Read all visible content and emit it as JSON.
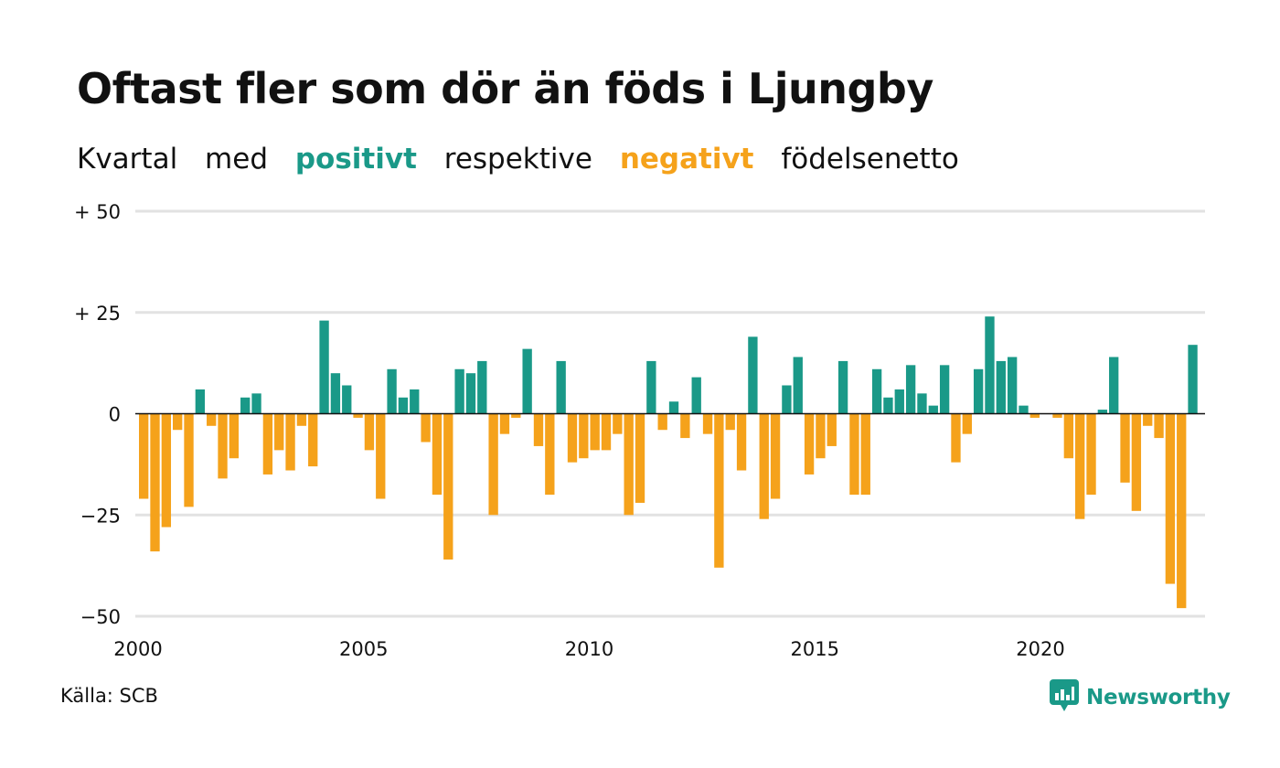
{
  "title": "Oftast fler som dör än föds i Ljungby",
  "subtitle": {
    "part1": "Kvartal",
    "part2": "med",
    "positive_word": "positivt",
    "part3": "respektive",
    "negative_word": "negativt",
    "part4": "födelsenetto"
  },
  "source": "Källa: SCB",
  "brand": {
    "name": "Newsworthy",
    "icon": "newsworthy-logo-icon"
  },
  "colors": {
    "positive": "#1a9988",
    "negative": "#f5a21b",
    "grid": "#e2e2e2",
    "zero_line": "#111111"
  },
  "chart_data": {
    "type": "bar",
    "title": "Oftast fler som dör än föds i Ljungby",
    "subtitle": "Kvartal med positivt respektive negativt födelsenetto",
    "x_start": 2000,
    "x_step": 0.25,
    "xlim": [
      2000,
      2023.75
    ],
    "ylim": [
      -50,
      50
    ],
    "y_ticks": [
      {
        "value": 50,
        "label": "+ 50"
      },
      {
        "value": 25,
        "label": "+ 25"
      },
      {
        "value": 0,
        "label": "0"
      },
      {
        "value": -25,
        "label": "−25"
      },
      {
        "value": -50,
        "label": "−50"
      }
    ],
    "x_ticks": [
      {
        "value": 2000,
        "label": "2000"
      },
      {
        "value": 2005,
        "label": "2005"
      },
      {
        "value": 2010,
        "label": "2010"
      },
      {
        "value": 2015,
        "label": "2015"
      },
      {
        "value": 2020,
        "label": "2020"
      }
    ],
    "grid": true,
    "values": [
      -21,
      -34,
      -28,
      -4,
      -23,
      6,
      -3,
      -16,
      -11,
      4,
      5,
      -15,
      -9,
      -14,
      -3,
      -13,
      23,
      10,
      7,
      -1,
      -9,
      -21,
      11,
      4,
      6,
      -7,
      -20,
      -36,
      11,
      10,
      13,
      -25,
      -5,
      -1,
      16,
      -8,
      -20,
      13,
      -12,
      -11,
      -9,
      -9,
      -5,
      -25,
      -22,
      13,
      -4,
      3,
      -6,
      9,
      -5,
      -38,
      -4,
      -14,
      19,
      -26,
      -21,
      7,
      14,
      -15,
      -11,
      -8,
      13,
      -20,
      -20,
      11,
      4,
      6,
      12,
      5,
      2,
      12,
      -12,
      -5,
      11,
      24,
      13,
      14,
      2,
      -1,
      0,
      -1,
      -11,
      -26,
      -20,
      1,
      14,
      -17,
      -24,
      -3,
      -6,
      -42,
      -48,
      17
    ]
  }
}
